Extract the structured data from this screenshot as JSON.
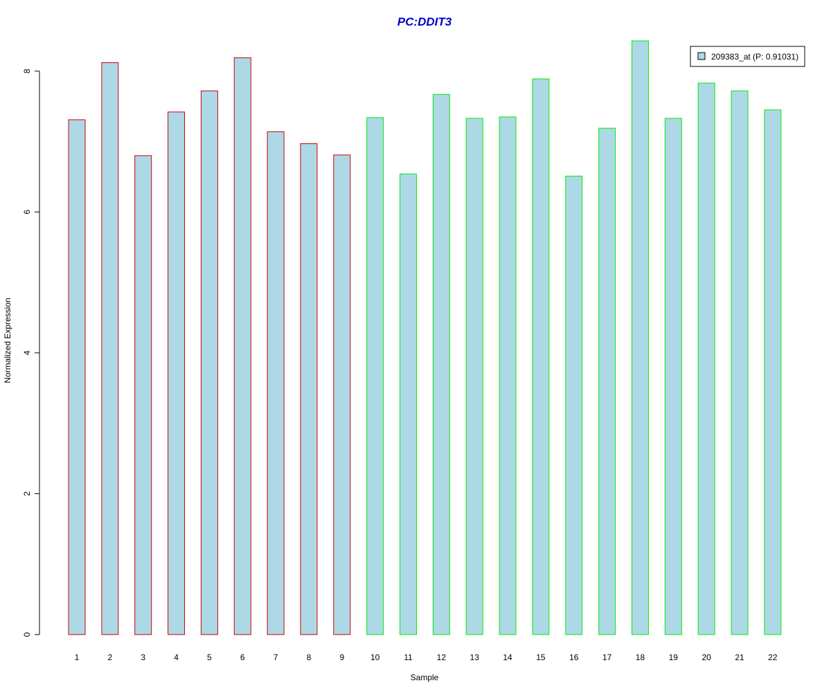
{
  "chart_data": {
    "type": "bar",
    "title": "PC:DDIT3",
    "xlabel": "Sample",
    "ylabel": "Normalized Expression",
    "categories": [
      "1",
      "2",
      "3",
      "4",
      "5",
      "6",
      "7",
      "8",
      "9",
      "10",
      "11",
      "12",
      "13",
      "14",
      "15",
      "16",
      "17",
      "18",
      "19",
      "20",
      "21",
      "22"
    ],
    "series": [
      {
        "name": "209383_at (P: 0.91031)",
        "values": [
          7.31,
          8.12,
          6.8,
          7.42,
          7.72,
          8.19,
          7.14,
          6.97,
          6.81,
          7.34,
          6.54,
          7.67,
          7.33,
          7.35,
          7.89,
          6.51,
          7.19,
          8.43,
          7.33,
          7.83,
          7.72,
          7.45
        ]
      }
    ],
    "group_border_colors": [
      "#cc0000",
      "#cc0000",
      "#cc0000",
      "#cc0000",
      "#cc0000",
      "#cc0000",
      "#cc0000",
      "#cc0000",
      "#cc0000",
      "#00ee00",
      "#00ee00",
      "#00ee00",
      "#00ee00",
      "#00ee00",
      "#00ee00",
      "#00ee00",
      "#00ee00",
      "#00ee00",
      "#00ee00",
      "#00ee00",
      "#00ee00",
      "#00ee00"
    ],
    "bar_fill_color": "#add8e6",
    "title_color": "#0000cc",
    "yticks": [
      0,
      2,
      4,
      6,
      8
    ],
    "ylim": [
      0,
      8.43
    ],
    "grid": false,
    "legend_position": "top-right"
  }
}
